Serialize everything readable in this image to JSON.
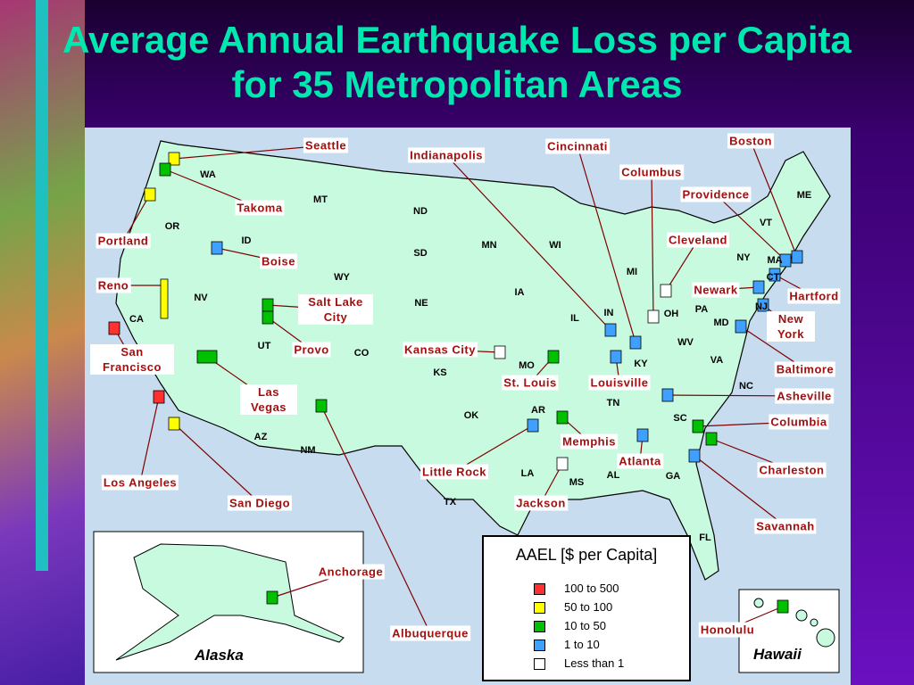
{
  "title": "Average Annual Earthquake Loss per Capita for 35 Metropolitan Areas",
  "cities": [
    {
      "name": "Seattle",
      "color": "#ffff00"
    },
    {
      "name": "Takoma",
      "color": "#00c000"
    },
    {
      "name": "Portland",
      "color": "#ffff00"
    },
    {
      "name": "Boise",
      "color": "#40a0ff"
    },
    {
      "name": "Reno",
      "color": "#ffff00"
    },
    {
      "name": "Salt Lake City",
      "color": "#00c000"
    },
    {
      "name": "Provo",
      "color": "#00c000"
    },
    {
      "name": "San Francisco",
      "color": "#ff3030"
    },
    {
      "name": "Las Vegas",
      "color": "#00c000"
    },
    {
      "name": "Los Angeles",
      "color": "#ff3030"
    },
    {
      "name": "San Diego",
      "color": "#ffff00"
    },
    {
      "name": "Anchorage",
      "color": "#00c000"
    },
    {
      "name": "Albuquerque",
      "color": "#00c000"
    },
    {
      "name": "Indianapolis",
      "color": "#40a0ff"
    },
    {
      "name": "Cincinnati",
      "color": "#40a0ff"
    },
    {
      "name": "Columbus",
      "color": "#ffffff"
    },
    {
      "name": "Providence",
      "color": "#40a0ff"
    },
    {
      "name": "Boston",
      "color": "#40a0ff"
    },
    {
      "name": "Cleveland",
      "color": "#ffffff"
    },
    {
      "name": "Newark",
      "color": "#40a0ff"
    },
    {
      "name": "Hartford",
      "color": "#40a0ff"
    },
    {
      "name": "New York",
      "color": "#40a0ff"
    },
    {
      "name": "Baltimore",
      "color": "#40a0ff"
    },
    {
      "name": "Kansas City",
      "color": "#ffffff"
    },
    {
      "name": "St. Louis",
      "color": "#00c000"
    },
    {
      "name": "Louisville",
      "color": "#40a0ff"
    },
    {
      "name": "Asheville",
      "color": "#40a0ff"
    },
    {
      "name": "Columbia",
      "color": "#00c000"
    },
    {
      "name": "Memphis",
      "color": "#00c000"
    },
    {
      "name": "Atlanta",
      "color": "#40a0ff"
    },
    {
      "name": "Little Rock",
      "color": "#40a0ff"
    },
    {
      "name": "Charleston",
      "color": "#00c000"
    },
    {
      "name": "Jackson",
      "color": "#ffffff"
    },
    {
      "name": "Savannah",
      "color": "#40a0ff"
    },
    {
      "name": "Honolulu",
      "color": "#00c000"
    }
  ],
  "states": [
    "WA",
    "OR",
    "CA",
    "NV",
    "ID",
    "MT",
    "WY",
    "UT",
    "CO",
    "AZ",
    "NM",
    "ND",
    "SD",
    "NE",
    "KS",
    "OK",
    "TX",
    "MN",
    "IA",
    "MO",
    "AR",
    "LA",
    "WI",
    "IL",
    "MS",
    "MI",
    "IN",
    "KY",
    "TN",
    "AL",
    "GA",
    "FL",
    "OH",
    "PA",
    "NY",
    "VT",
    "ME",
    "MA",
    "CT",
    "NJ",
    "MD",
    "WV",
    "VA",
    "NC",
    "SC"
  ],
  "legend": {
    "title": "AAEL [$ per Capita]",
    "items": [
      {
        "label": "100 to 500",
        "color": "#ff3030"
      },
      {
        "label": "50 to 100",
        "color": "#ffff00"
      },
      {
        "label": "10 to 50",
        "color": "#00c000"
      },
      {
        "label": "1 to 10",
        "color": "#40a0ff"
      },
      {
        "label": "Less than 1",
        "color": "#ffffff"
      }
    ]
  },
  "insets": {
    "alaska": "Alaska",
    "hawaii": "Hawaii"
  }
}
